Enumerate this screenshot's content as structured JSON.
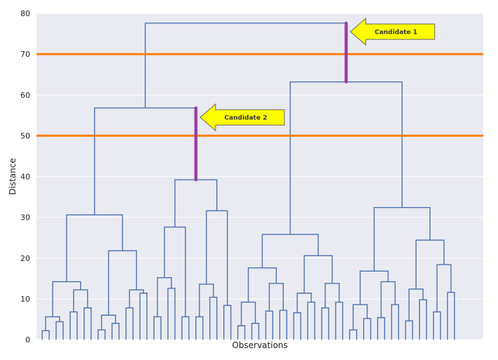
{
  "chart_data": {
    "type": "dendrogram",
    "xlabel": "Observations",
    "ylabel": "Distance",
    "ylim": [
      0,
      80
    ],
    "yticks": [
      0,
      10,
      20,
      30,
      40,
      50,
      60,
      70,
      80
    ],
    "grid": true,
    "leaf_count": 32,
    "merges": [
      {
        "left": "L1",
        "right": "L2",
        "height": 5.6
      },
      {
        "left": "L3",
        "right": "L4",
        "height": 12.2
      },
      {
        "left": "M1",
        "right": "M2",
        "height": 14.2
      },
      {
        "left": "L5",
        "right": "L6",
        "height": 6.0
      },
      {
        "left": "L7",
        "right": "L8",
        "height": 12.2
      },
      {
        "left": "M4",
        "right": "M5",
        "height": 21.8
      },
      {
        "left": "M3",
        "right": "M6",
        "height": 30.6
      },
      {
        "left": "L9",
        "right": "L10",
        "height": 15.2
      },
      {
        "left": "M8",
        "right": "L11",
        "height": 27.6
      },
      {
        "left": "L13",
        "right": "L14",
        "height": 13.6
      },
      {
        "left": "M10",
        "right": "L15",
        "height": 31.6
      },
      {
        "left": "M9",
        "right": "M11",
        "height": 39.2
      },
      {
        "left": "M7",
        "right": "M12",
        "height": 56.8
      },
      {
        "left": "L16",
        "right": "L17",
        "height": 9.2
      },
      {
        "left": "L18",
        "right": "L19",
        "height": 13.8
      },
      {
        "left": "M14",
        "right": "M15",
        "height": 17.6
      },
      {
        "left": "L20",
        "right": "L21",
        "height": 11.4
      },
      {
        "left": "L22",
        "right": "L23",
        "height": 13.8
      },
      {
        "left": "M17",
        "right": "M18",
        "height": 20.6
      },
      {
        "left": "M16",
        "right": "M19",
        "height": 25.8
      },
      {
        "left": "L24",
        "right": "L25",
        "height": 8.6
      },
      {
        "left": "L26",
        "right": "L27",
        "height": 14.2
      },
      {
        "left": "M21",
        "right": "M22",
        "height": 16.8
      },
      {
        "left": "L28",
        "right": "L29",
        "height": 12.4
      },
      {
        "left": "L30",
        "right": "L31",
        "height": 18.4
      },
      {
        "left": "M24",
        "right": "M25",
        "height": 24.4
      },
      {
        "left": "M23",
        "right": "M26",
        "height": 32.4
      },
      {
        "left": "M20",
        "right": "M27",
        "height": 63.2
      },
      {
        "left": "M13",
        "right": "M28",
        "height": 77.6
      }
    ],
    "leaf_pairs": [
      {
        "id": "L1",
        "heights": [
          2.2,
          2.2
        ],
        "pair_height": 2.2
      },
      {
        "id": "L2",
        "heights": [
          4.4,
          4.4
        ],
        "pair_height": 4.4
      },
      {
        "id": "L3",
        "heights": [
          6.8,
          6.8
        ],
        "pair_height": 6.8
      },
      {
        "id": "L4",
        "heights": [
          7.8,
          7.8
        ],
        "pair_height": 7.8
      },
      {
        "id": "L5",
        "heights": [
          2.4,
          2.4
        ],
        "pair_height": 2.4
      },
      {
        "id": "L6",
        "heights": [
          4.0,
          4.0
        ],
        "pair_height": 4.0
      },
      {
        "id": "L7",
        "heights": [
          7.8,
          7.8
        ],
        "pair_height": 7.8
      },
      {
        "id": "L8",
        "heights": [
          11.4,
          11.4
        ],
        "pair_height": 11.4
      },
      {
        "id": "L9",
        "heights": [
          5.6,
          5.6
        ],
        "pair_height": 5.6
      },
      {
        "id": "L10",
        "heights": [
          12.6,
          12.6
        ],
        "pair_height": 12.6
      },
      {
        "id": "L11",
        "heights": [
          19.0,
          5.6
        ],
        "pair_height": 5.6
      },
      {
        "id": "L13",
        "heights": [
          5.6,
          5.6
        ],
        "pair_height": 5.6
      },
      {
        "id": "L14",
        "heights": [
          10.4,
          10.4
        ],
        "pair_height": 10.4
      },
      {
        "id": "L15",
        "heights": [
          4.4,
          16.6
        ],
        "pair_height": 8.4
      },
      {
        "id": "L16",
        "heights": [
          3.4,
          3.4
        ],
        "pair_height": 3.4
      },
      {
        "id": "L17",
        "heights": [
          4.0,
          4.0
        ],
        "pair_height": 4.0
      },
      {
        "id": "L18",
        "heights": [
          7.0,
          7.0
        ],
        "pair_height": 7.0
      },
      {
        "id": "L19",
        "heights": [
          7.2,
          7.2
        ],
        "pair_height": 7.2
      },
      {
        "id": "L20",
        "heights": [
          6.6,
          6.6
        ],
        "pair_height": 6.6
      },
      {
        "id": "L21",
        "heights": [
          9.2,
          9.2
        ],
        "pair_height": 9.2
      },
      {
        "id": "L22",
        "heights": [
          7.8,
          7.8
        ],
        "pair_height": 7.8
      },
      {
        "id": "L23",
        "heights": [
          9.2,
          9.2
        ],
        "pair_height": 9.2
      },
      {
        "id": "L24",
        "heights": [
          2.4,
          2.4
        ],
        "pair_height": 2.4
      },
      {
        "id": "L25",
        "heights": [
          5.2,
          5.2
        ],
        "pair_height": 5.2
      },
      {
        "id": "L26",
        "heights": [
          5.4,
          5.4
        ],
        "pair_height": 5.4
      },
      {
        "id": "L27",
        "heights": [
          8.6,
          8.6
        ],
        "pair_height": 8.6
      },
      {
        "id": "L28",
        "heights": [
          4.6,
          4.6
        ],
        "pair_height": 4.6
      },
      {
        "id": "L29",
        "heights": [
          9.8,
          9.8
        ],
        "pair_height": 9.8
      },
      {
        "id": "L30",
        "heights": [
          6.8,
          6.8
        ],
        "pair_height": 6.8
      },
      {
        "id": "L31",
        "heights": [
          11.6,
          11.6
        ],
        "pair_height": 11.6
      }
    ],
    "cut_lines": [
      {
        "y": 70,
        "color": "#ff7f0e"
      },
      {
        "y": 50,
        "color": "#ff7f0e"
      }
    ],
    "highlights": [
      {
        "from": 63.2,
        "to": 77.6,
        "at_merge": "root-right",
        "color": "#9b3fa6"
      },
      {
        "from": 39.2,
        "to": 56.8,
        "at_merge": "M13-right",
        "color": "#9b3fa6"
      }
    ],
    "annotations": [
      {
        "text": "Candidate 1",
        "at_y": 75.5,
        "points_to": "highlight-1"
      },
      {
        "text": "Candidate 2",
        "at_y": 54.5,
        "points_to": "highlight-2"
      }
    ],
    "colors": {
      "background": "#eaeaf2",
      "grid": "#ffffff",
      "link": "#4c72b0",
      "callout_fill": "#ffff00",
      "callout_stroke": "#666666"
    }
  }
}
